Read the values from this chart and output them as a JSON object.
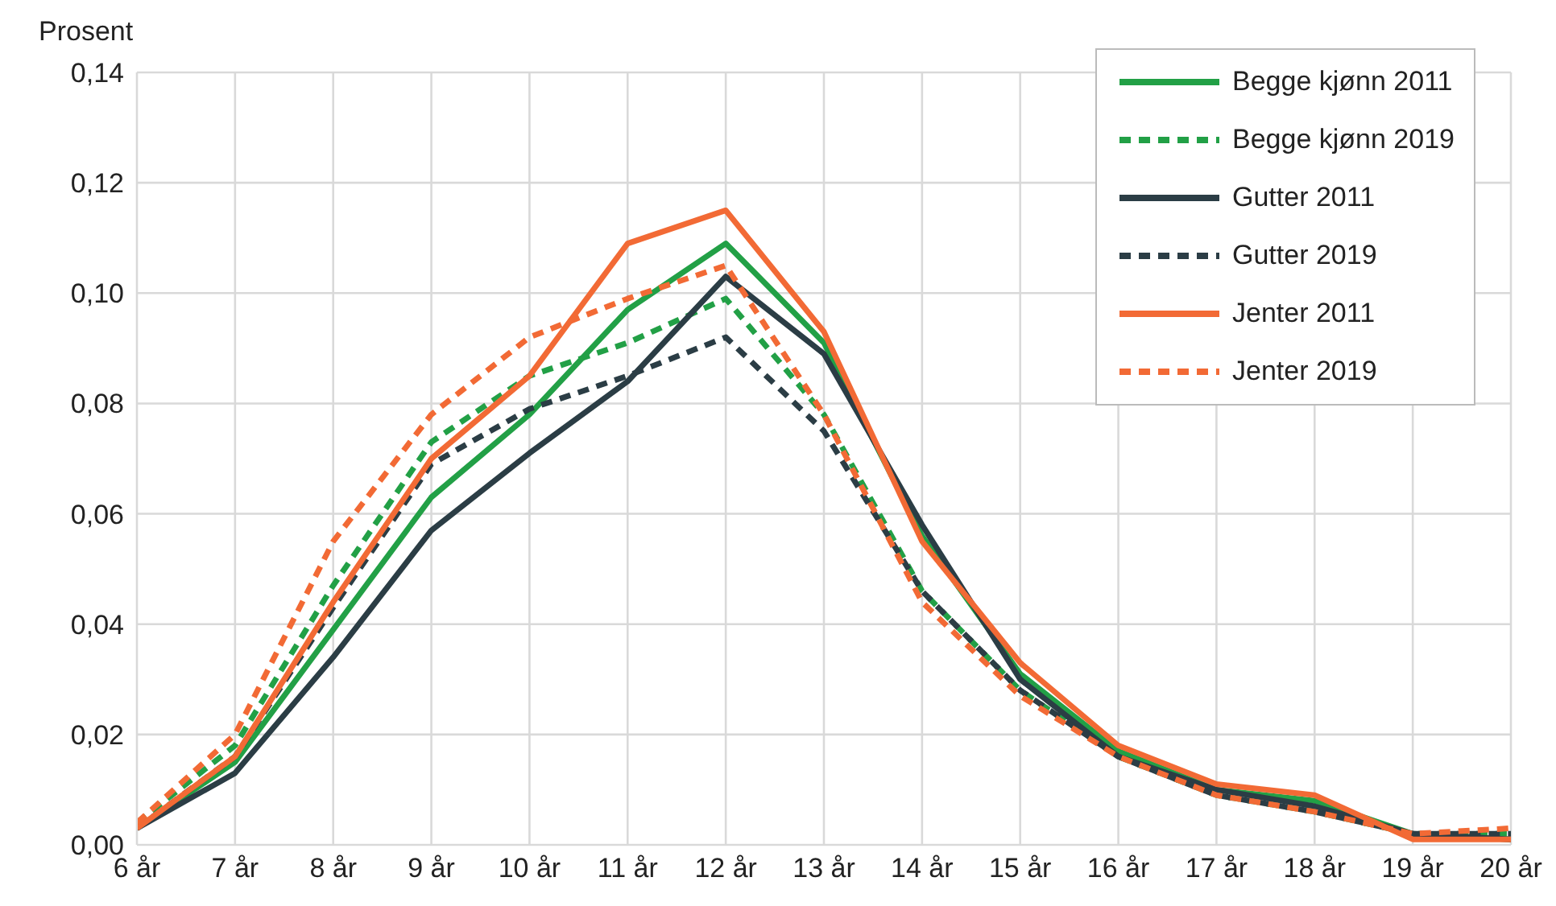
{
  "chart_data": {
    "type": "line",
    "ylabel": "Prosent",
    "categories": [
      "6 år",
      "7 år",
      "8 år",
      "9 år",
      "10 år",
      "11 år",
      "12 år",
      "13 år",
      "14 år",
      "15 år",
      "16 år",
      "17 år",
      "18 år",
      "19 år",
      "20 år"
    ],
    "series": [
      {
        "name": "Begge kjønn 2011",
        "color": "#22a046",
        "line_style": "solid",
        "values": [
          0.003,
          0.015,
          0.039,
          0.063,
          0.078,
          0.097,
          0.109,
          0.091,
          0.056,
          0.031,
          0.017,
          0.01,
          0.008,
          0.002,
          0.001
        ]
      },
      {
        "name": "Begge kjønn 2019",
        "color": "#22a046",
        "line_style": "dashed",
        "values": [
          0.004,
          0.018,
          0.047,
          0.073,
          0.085,
          0.091,
          0.099,
          0.078,
          0.046,
          0.028,
          0.016,
          0.009,
          0.006,
          0.002,
          0.002
        ]
      },
      {
        "name": "Gutter 2011",
        "color": "#2b3d45",
        "line_style": "solid",
        "values": [
          0.003,
          0.013,
          0.034,
          0.057,
          0.071,
          0.084,
          0.103,
          0.089,
          0.058,
          0.03,
          0.016,
          0.01,
          0.007,
          0.002,
          0.001
        ]
      },
      {
        "name": "Gutter 2019",
        "color": "#2b3d45",
        "line_style": "dashed",
        "values": [
          0.003,
          0.016,
          0.043,
          0.069,
          0.079,
          0.085,
          0.092,
          0.075,
          0.046,
          0.028,
          0.016,
          0.009,
          0.006,
          0.002,
          0.002
        ]
      },
      {
        "name": "Jenter 2011",
        "color": "#f26a35",
        "line_style": "solid",
        "values": [
          0.003,
          0.016,
          0.044,
          0.07,
          0.085,
          0.109,
          0.115,
          0.093,
          0.055,
          0.033,
          0.018,
          0.011,
          0.009,
          0.001,
          0.001
        ]
      },
      {
        "name": "Jenter 2019",
        "color": "#f26a35",
        "line_style": "dashed",
        "values": [
          0.004,
          0.02,
          0.055,
          0.078,
          0.092,
          0.099,
          0.105,
          0.078,
          0.044,
          0.027,
          0.016,
          0.009,
          0.006,
          0.002,
          0.003
        ]
      }
    ],
    "ylim": [
      0,
      0.14
    ],
    "yticks": [
      {
        "value": 0,
        "label": "0,00"
      },
      {
        "value": 0.02,
        "label": "0,02"
      },
      {
        "value": 0.04,
        "label": "0,04"
      },
      {
        "value": 0.06,
        "label": "0,06"
      },
      {
        "value": 0.08,
        "label": "0,08"
      },
      {
        "value": 0.1,
        "label": "0,10"
      },
      {
        "value": 0.12,
        "label": "0,12"
      },
      {
        "value": 0.14,
        "label": "0,14"
      }
    ],
    "grid": true,
    "legend": "top right",
    "marker": "none"
  }
}
